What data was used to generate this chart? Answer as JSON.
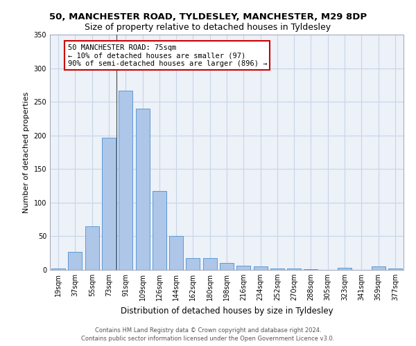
{
  "title1": "50, MANCHESTER ROAD, TYLDESLEY, MANCHESTER, M29 8DP",
  "title2": "Size of property relative to detached houses in Tyldesley",
  "xlabel": "Distribution of detached houses by size in Tyldesley",
  "ylabel": "Number of detached properties",
  "bins": [
    "19sqm",
    "37sqm",
    "55sqm",
    "73sqm",
    "91sqm",
    "109sqm",
    "126sqm",
    "144sqm",
    "162sqm",
    "180sqm",
    "198sqm",
    "216sqm",
    "234sqm",
    "252sqm",
    "270sqm",
    "288sqm",
    "305sqm",
    "323sqm",
    "341sqm",
    "359sqm",
    "377sqm"
  ],
  "values": [
    2,
    27,
    65,
    197,
    267,
    240,
    117,
    50,
    18,
    18,
    10,
    6,
    5,
    2,
    2,
    1,
    0,
    3,
    0,
    5,
    2
  ],
  "bar_color": "#aec6e8",
  "bar_edge_color": "#5b9bd5",
  "annotation_box_text": "50 MANCHESTER ROAD: 75sqm\n← 10% of detached houses are smaller (97)\n90% of semi-detached houses are larger (896) →",
  "annotation_box_facecolor": "#ffffff",
  "annotation_box_edgecolor": "#cc0000",
  "vline_color": "#555555",
  "vline_x": 3.45,
  "ylim": [
    0,
    350
  ],
  "yticks": [
    0,
    50,
    100,
    150,
    200,
    250,
    300,
    350
  ],
  "grid_color": "#c8d4e8",
  "bg_color": "#edf1f8",
  "footer": "Contains HM Land Registry data © Crown copyright and database right 2024.\nContains public sector information licensed under the Open Government Licence v3.0.",
  "title1_fontsize": 9.5,
  "title2_fontsize": 9.0,
  "xlabel_fontsize": 8.5,
  "ylabel_fontsize": 8.0,
  "tick_fontsize": 7.0,
  "annotation_fontsize": 7.5,
  "footer_fontsize": 6.0
}
